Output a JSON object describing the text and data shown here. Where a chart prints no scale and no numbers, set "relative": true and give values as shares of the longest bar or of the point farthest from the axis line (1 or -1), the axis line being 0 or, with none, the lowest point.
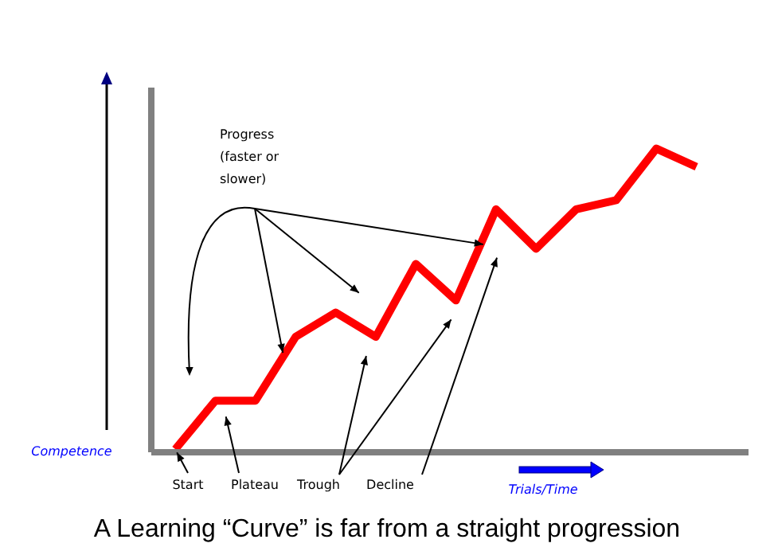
{
  "chart_data": {
    "type": "line",
    "title": "A Learning “Curve” is far from a straight progression",
    "xlabel": "Trials/Time",
    "ylabel": "Competence",
    "relative": true,
    "categories": [
      null,
      null,
      null,
      null,
      null,
      null,
      null,
      null,
      null,
      null,
      null,
      null,
      null,
      null
    ],
    "series": [
      {
        "color": "#ff0000",
        "values": [
          0.01,
          0.17,
          0.17,
          0.38,
          0.46,
          0.38,
          0.62,
          0.5,
          0.8,
          0.67,
          0.8,
          0.83,
          1,
          0.94
        ]
      }
    ],
    "annotations": [
      "Progress (faster or slower)",
      "Start",
      "Plateau",
      "Trough",
      "Decline"
    ],
    "legend": false,
    "grid": false
  }
}
